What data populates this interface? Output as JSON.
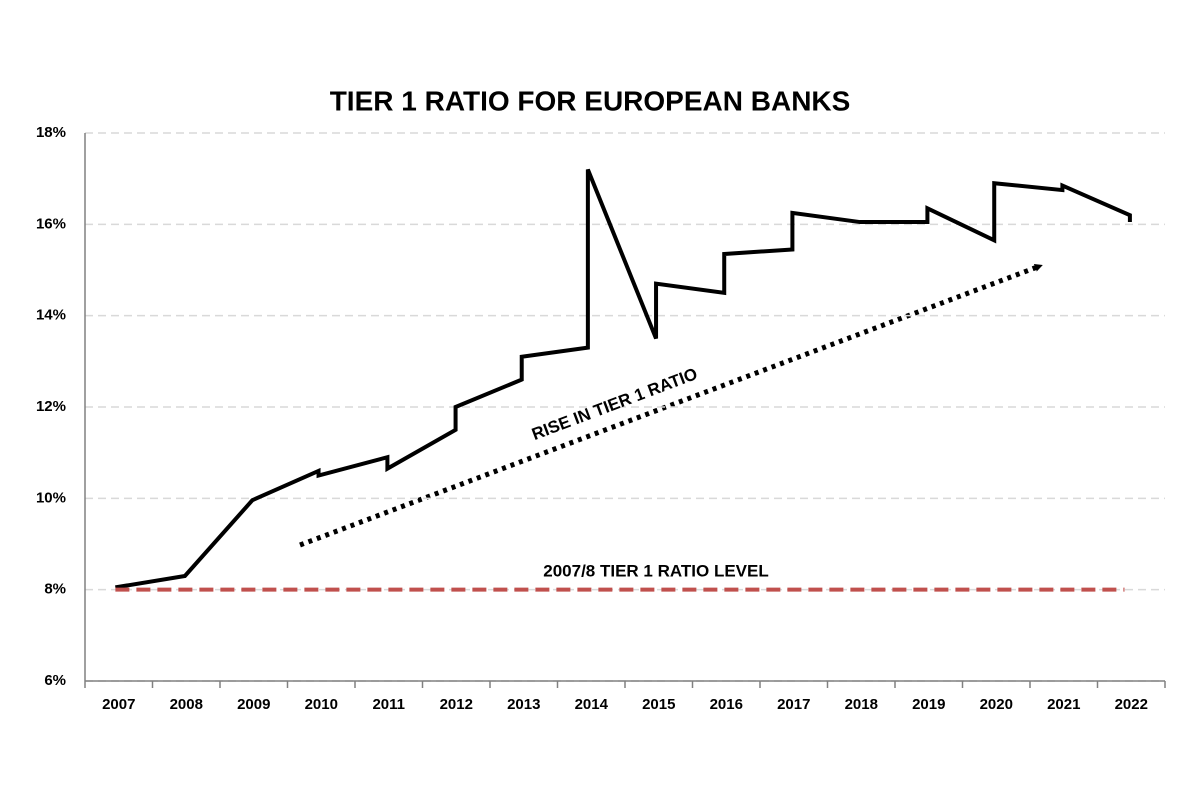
{
  "chart_data": {
    "type": "line",
    "title": "TIER 1 RATIO FOR EUROPEAN BANKS",
    "xlim": [
      2006.5,
      2022.5
    ],
    "xticks": [
      2007,
      2008,
      2009,
      2010,
      2011,
      2012,
      2013,
      2014,
      2015,
      2016,
      2017,
      2018,
      2019,
      2020,
      2021,
      2022
    ],
    "ylim": [
      6,
      18
    ],
    "yticks": [
      {
        "value": 6,
        "label": "6%"
      },
      {
        "value": 8,
        "label": "8%"
      },
      {
        "value": 10,
        "label": "10%"
      },
      {
        "value": 12,
        "label": "12%"
      },
      {
        "value": 14,
        "label": "14%"
      },
      {
        "value": 16,
        "label": "16%"
      },
      {
        "value": 18,
        "label": "18%"
      }
    ],
    "grid": true,
    "series": [
      {
        "color": "#000000",
        "x": [
          2006.95,
          2007.98,
          2008.98,
          2009.96,
          2009.96,
          2010.98,
          2010.98,
          2011.99,
          2011.99,
          2012.97,
          2012.97,
          2013.95,
          2013.95,
          2014.96,
          2014.96,
          2015.97,
          2015.97,
          2016.98,
          2016.98,
          2017.98,
          2018.98,
          2018.98,
          2019.97,
          2019.97,
          2020.98,
          2020.98,
          2021.98,
          2021.98
        ],
        "values": [
          8.05,
          8.3,
          9.96,
          10.6,
          10.5,
          10.9,
          10.65,
          11.5,
          12.0,
          12.6,
          13.1,
          13.3,
          17.2,
          13.5,
          14.7,
          14.5,
          15.35,
          15.45,
          16.25,
          16.05,
          16.05,
          16.35,
          15.65,
          16.9,
          16.75,
          16.85,
          16.2,
          16.05
        ]
      },
      {
        "color": "#c0504d",
        "dashed": true,
        "x": [
          2006.95,
          2021.9
        ],
        "values": [
          8,
          8
        ]
      }
    ],
    "annotations": [
      "2007/8 TIER 1 RATIO LEVEL",
      "RISE IN TIER 1 RATIO"
    ]
  }
}
